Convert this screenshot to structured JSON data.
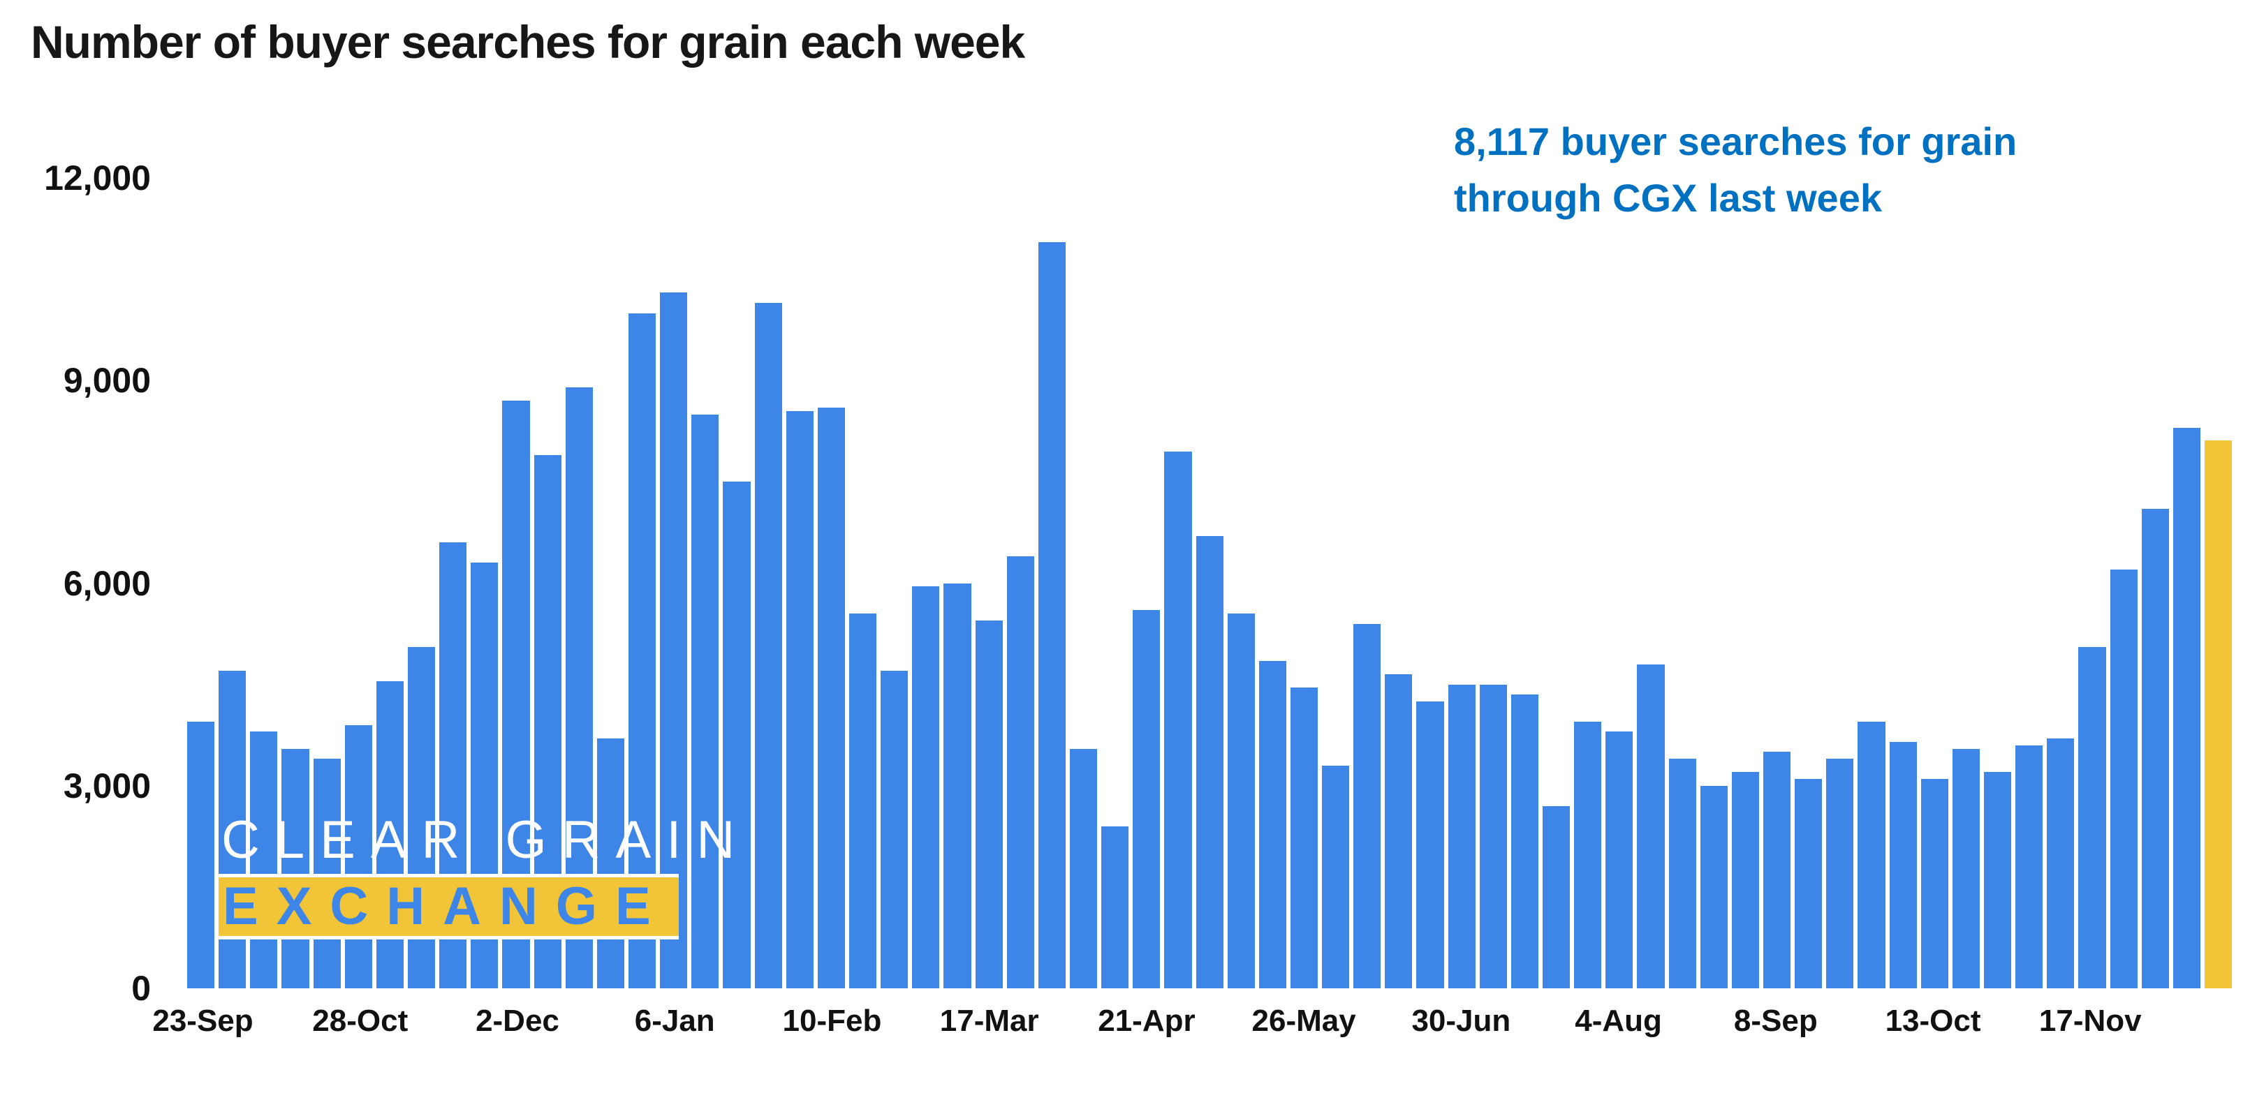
{
  "title": "Number of buyer searches for grain each week",
  "annotation": {
    "line1": "8,117 buyer searches for grain",
    "line2": "through CGX last week",
    "color": "#0070C0"
  },
  "watermark": {
    "line1": "CLEAR GRAIN",
    "line2": "EXCHANGE",
    "band_color": "#f2c437",
    "letter_color": "#3d85e6"
  },
  "chart_data": {
    "type": "bar",
    "title": "Number of buyer searches for grain each week",
    "xlabel": "",
    "ylabel": "",
    "grid": false,
    "legend": false,
    "ylim": [
      0,
      12000
    ],
    "yticks": [
      0,
      3000,
      6000,
      9000,
      12000
    ],
    "ytick_labels": [
      "0",
      "3,000",
      "6,000",
      "9,000",
      "12,000"
    ],
    "x_tick_positions": [
      0,
      5,
      10,
      15,
      20,
      25,
      30,
      35,
      40,
      45,
      50,
      55,
      60
    ],
    "x_tick_labels": [
      "23-Sep",
      "28-Oct",
      "2-Dec",
      "6-Jan",
      "10-Feb",
      "17-Mar",
      "21-Apr",
      "26-May",
      "30-Jun",
      "4-Aug",
      "8-Sep",
      "13-Oct",
      "17-Nov"
    ],
    "values": [
      3950,
      4700,
      3800,
      3550,
      3400,
      3900,
      4550,
      5050,
      6600,
      6300,
      8700,
      7900,
      8900,
      3700,
      10000,
      10300,
      8500,
      7500,
      10150,
      8550,
      8600,
      5550,
      4700,
      5950,
      6000,
      5450,
      6400,
      11050,
      3550,
      2400,
      5600,
      7950,
      6700,
      5550,
      4850,
      4450,
      3300,
      5400,
      4650,
      4250,
      4500,
      4500,
      4350,
      2700,
      3950,
      3800,
      4800,
      3400,
      3000,
      3200,
      3500,
      3100,
      3400,
      3950,
      3650,
      3100,
      3550,
      3200,
      3600,
      3700,
      5050,
      6200,
      7100,
      8300,
      8117
    ],
    "bar_color": "#3d85e6",
    "highlight_index": 64,
    "highlight_color": "#f2c437",
    "highlight_value": 8117
  }
}
